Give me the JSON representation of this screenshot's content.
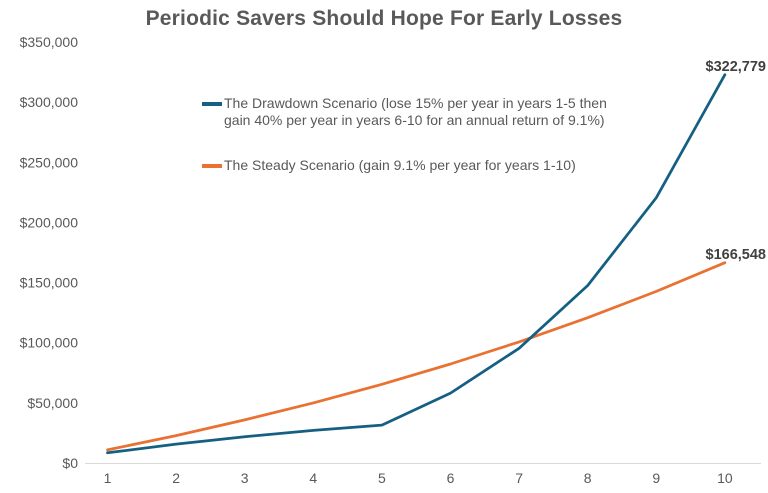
{
  "chart_data": {
    "type": "line",
    "title": "Periodic Savers Should Hope For Early Losses",
    "xlabel": "",
    "ylabel": "",
    "x_categories": [
      "1",
      "2",
      "3",
      "4",
      "5",
      "6",
      "7",
      "8",
      "9",
      "10"
    ],
    "ylim": [
      0,
      350000
    ],
    "grid": false,
    "legend_position": "upper-left-inside",
    "axis_line_color": "#d9d9d9",
    "text_color": "#595959",
    "data_label_color": "#404040",
    "y_ticks": [
      {
        "label": "$0",
        "value": 0
      },
      {
        "label": "$50,000",
        "value": 50000
      },
      {
        "label": "$100,000",
        "value": 100000
      },
      {
        "label": "$150,000",
        "value": 150000
      },
      {
        "label": "$200,000",
        "value": 200000
      },
      {
        "label": "$250,000",
        "value": 250000
      },
      {
        "label": "$300,000",
        "value": 300000
      },
      {
        "label": "$350,000",
        "value": 350000
      }
    ],
    "series": [
      {
        "name": "The Drawdown Scenario (lose 15% per year in years 1-5 then gain 40% per year in years 6-10 for an annual return of 9.1%)",
        "legend_lines": [
          "The Drawdown Scenario (lose 15% per year in years 1-5 then",
          "gain 40% per year in years 6-10 for an annual return of 9.1%)"
        ],
        "color": "#156082",
        "values": [
          8500,
          15725,
          21866,
          27086,
          31523,
          58133,
          95386,
          147540,
          220556,
          322779
        ],
        "end_label": "$322,779"
      },
      {
        "name": "The Steady Scenario (gain 9.1% per year for years 1-10)",
        "legend_lines": [
          "The Steady Scenario (gain 9.1% per year for years 1-10)"
        ],
        "color": "#E97132",
        "values": [
          10910,
          22813,
          35799,
          49966,
          65423,
          82287,
          100685,
          120757,
          142656,
          166548
        ],
        "end_label": "$166,548"
      }
    ]
  }
}
